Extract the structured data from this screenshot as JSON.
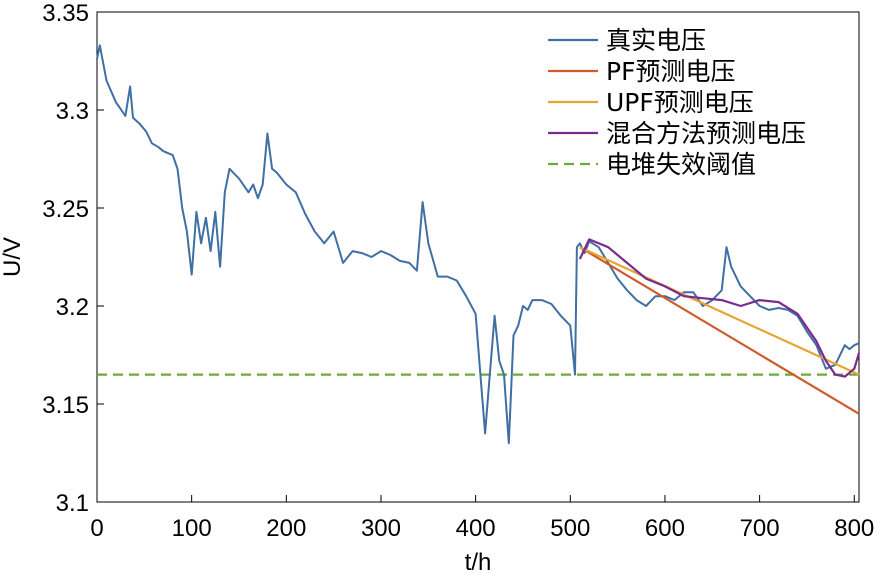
{
  "chart_data": {
    "type": "line",
    "xlabel": "t/h",
    "ylabel": "U/V",
    "xlim": [
      0,
      805
    ],
    "ylim": [
      3.1,
      3.35
    ],
    "xticks": [
      "0",
      "100",
      "200",
      "300",
      "400",
      "500",
      "600",
      "700",
      "800"
    ],
    "yticks": [
      "3.1",
      "3.15",
      "3.2",
      "3.25",
      "3.3",
      "3.35"
    ],
    "grid": false,
    "legend_position": "top-right",
    "colors": {
      "real": "#3f6fa5",
      "pf": "#d05a2a",
      "upf": "#e6a532",
      "hybrid": "#7b2a8f",
      "threshold": "#6aaa3a"
    },
    "series": [
      {
        "key": "real",
        "name": "真实电压",
        "x": [
          0,
          3,
          10,
          20,
          30,
          35,
          38,
          45,
          52,
          58,
          65,
          70,
          80,
          85,
          90,
          95,
          100,
          105,
          110,
          115,
          120,
          125,
          130,
          135,
          140,
          150,
          160,
          165,
          170,
          175,
          180,
          185,
          190,
          200,
          210,
          220,
          230,
          240,
          250,
          260,
          270,
          280,
          290,
          300,
          310,
          320,
          330,
          338,
          344,
          350,
          360,
          370,
          380,
          390,
          400,
          405,
          410,
          415,
          420,
          425,
          430,
          435,
          440,
          445,
          450,
          455,
          460,
          470,
          480,
          490,
          500,
          505,
          507,
          510,
          515,
          520,
          530,
          540,
          550,
          560,
          570,
          580,
          590,
          600,
          610,
          620,
          630,
          640,
          650,
          660,
          665,
          670,
          680,
          690,
          700,
          710,
          720,
          730,
          740,
          750,
          760,
          770,
          780,
          790,
          795,
          800,
          805
        ],
        "y": [
          3.326,
          3.333,
          3.315,
          3.304,
          3.297,
          3.312,
          3.296,
          3.293,
          3.289,
          3.283,
          3.281,
          3.279,
          3.277,
          3.27,
          3.25,
          3.238,
          3.216,
          3.248,
          3.232,
          3.245,
          3.228,
          3.248,
          3.22,
          3.258,
          3.27,
          3.265,
          3.258,
          3.262,
          3.255,
          3.262,
          3.288,
          3.27,
          3.268,
          3.262,
          3.258,
          3.247,
          3.238,
          3.232,
          3.238,
          3.222,
          3.228,
          3.227,
          3.225,
          3.228,
          3.226,
          3.223,
          3.222,
          3.218,
          3.253,
          3.232,
          3.215,
          3.215,
          3.213,
          3.205,
          3.196,
          3.165,
          3.135,
          3.165,
          3.195,
          3.172,
          3.165,
          3.13,
          3.185,
          3.19,
          3.2,
          3.198,
          3.203,
          3.203,
          3.201,
          3.195,
          3.19,
          3.165,
          3.23,
          3.232,
          3.227,
          3.233,
          3.23,
          3.222,
          3.214,
          3.208,
          3.203,
          3.2,
          3.205,
          3.205,
          3.203,
          3.207,
          3.207,
          3.2,
          3.203,
          3.208,
          3.23,
          3.22,
          3.21,
          3.205,
          3.2,
          3.198,
          3.199,
          3.198,
          3.195,
          3.187,
          3.18,
          3.168,
          3.17,
          3.18,
          3.178,
          3.18,
          3.181
        ]
      },
      {
        "key": "pf",
        "name": "PF预测电压",
        "x": [
          510,
          805
        ],
        "y": [
          3.23,
          3.145
        ]
      },
      {
        "key": "upf",
        "name": "UPF预测电压",
        "x": [
          510,
          805
        ],
        "y": [
          3.23,
          3.165
        ]
      },
      {
        "key": "hybrid",
        "name": "混合方法预测电压",
        "x": [
          510,
          520,
          540,
          560,
          580,
          600,
          620,
          640,
          660,
          680,
          700,
          720,
          740,
          760,
          770,
          780,
          790,
          800,
          805
        ],
        "y": [
          3.224,
          3.234,
          3.23,
          3.222,
          3.214,
          3.21,
          3.205,
          3.204,
          3.203,
          3.2,
          3.203,
          3.202,
          3.196,
          3.182,
          3.172,
          3.165,
          3.164,
          3.168,
          3.176
        ]
      },
      {
        "key": "threshold",
        "name": "电堆失效阈值",
        "x": [
          0,
          805
        ],
        "y": [
          3.165,
          3.165
        ]
      }
    ]
  }
}
